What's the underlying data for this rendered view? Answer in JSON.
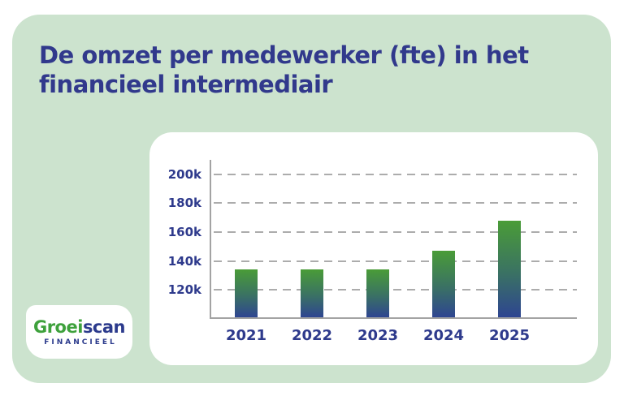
{
  "page": {
    "title_line1": "De omzet per medewerker (fte) in het",
    "title_line2": "financieel intermediair"
  },
  "logo": {
    "brand_green": "Groei",
    "brand_navy": "scan",
    "subtitle": "FINANCIEEL"
  },
  "colors": {
    "page_background": "#FFFFFF",
    "card_green": "#CCE3CE",
    "navy_text": "#31398C",
    "logo_green": "#3EA13C",
    "bar_gradient_top": "#4A9C37",
    "bar_gradient_bottom": "#2E4591",
    "gridline_gray": "#ACACAC",
    "axis_gray": "#A3A3A3"
  },
  "chart_data": {
    "type": "bar",
    "title": "De omzet per medewerker (fte) in het financieel intermediair",
    "xlabel": "",
    "ylabel": "",
    "categories": [
      "2021",
      "2022",
      "2023",
      "2024",
      "2025"
    ],
    "values": [
      133000,
      133000,
      133000,
      146000,
      167000
    ],
    "y_ticks": [
      120000,
      140000,
      160000,
      180000,
      200000
    ],
    "y_tick_labels": [
      "120k",
      "140k",
      "160k",
      "180k",
      "200k"
    ],
    "ylim": [
      100000,
      210000
    ],
    "grid": "horizontal-dashed",
    "legend": "none",
    "bar_color": "green-to-navy vertical gradient"
  }
}
